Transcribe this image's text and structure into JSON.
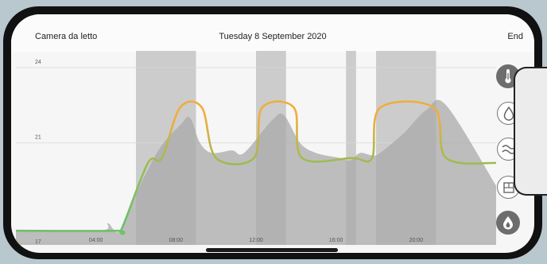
{
  "header": {
    "room": "Camera da letto",
    "date": "Tuesday 8 September 2020",
    "end_label": "End"
  },
  "colors": {
    "line_low": "#6ec06a",
    "line_high": "#f0ad3c",
    "shade": "#c4c4c4",
    "area": "#a9a9a9"
  },
  "side_buttons": [
    {
      "name": "thermometer-icon",
      "style": "filled"
    },
    {
      "name": "drop-icon",
      "style": "outline"
    },
    {
      "name": "wave-icon",
      "style": "outline"
    },
    {
      "name": "window-icon",
      "style": "outline"
    },
    {
      "name": "flame-drop-icon",
      "style": "filled"
    }
  ],
  "chart_data": {
    "type": "line",
    "title": "",
    "xlabel": "",
    "ylabel": "",
    "y_ticks": [
      "24",
      "21",
      "17"
    ],
    "x_ticks": [
      "04:00",
      "08:00",
      "12:00",
      "16:00",
      "20:00"
    ],
    "x_tick_hours": [
      4,
      8,
      12,
      16,
      20
    ],
    "y_tick_values": [
      24,
      21,
      17
    ],
    "xlim": [
      0,
      24
    ],
    "ylim": [
      17,
      24
    ],
    "shaded_periods": [
      [
        6,
        9
      ],
      [
        12,
        13.5
      ],
      [
        16.5,
        17
      ],
      [
        18,
        21
      ]
    ],
    "series": [
      {
        "role": "setpoint",
        "x": [
          0,
          5,
          5.3,
          6.6,
          7.3,
          8.2,
          9.3,
          10,
          11.9,
          12.3,
          13.9,
          14.3,
          16.8,
          17.8,
          18.2,
          20.9,
          21.5,
          24
        ],
        "y": [
          17.5,
          17.5,
          17.6,
          20.2,
          20.4,
          22.4,
          22.4,
          20.4,
          20.4,
          22.4,
          22.4,
          20.4,
          20.4,
          20.4,
          22.4,
          22.4,
          20.4,
          20.2
        ]
      },
      {
        "role": "measured",
        "x": [
          0,
          4.2,
          4.6,
          5.2,
          6.2,
          7.2,
          8.2,
          8.7,
          9.2,
          9.8,
          10.8,
          11.4,
          12.8,
          13.4,
          14.2,
          15,
          16.2,
          16.7,
          17.2,
          17.8,
          18.2,
          19.4,
          20.5,
          21.5,
          24
        ],
        "y": [
          17.5,
          17.5,
          17.8,
          17.5,
          19.3,
          20.8,
          21.7,
          22.0,
          21.0,
          20.6,
          20.7,
          20.6,
          21.9,
          22.1,
          21.0,
          20.6,
          20.4,
          20.3,
          20.6,
          20.5,
          20.6,
          21.4,
          22.3,
          22.5,
          19.3
        ]
      }
    ]
  }
}
